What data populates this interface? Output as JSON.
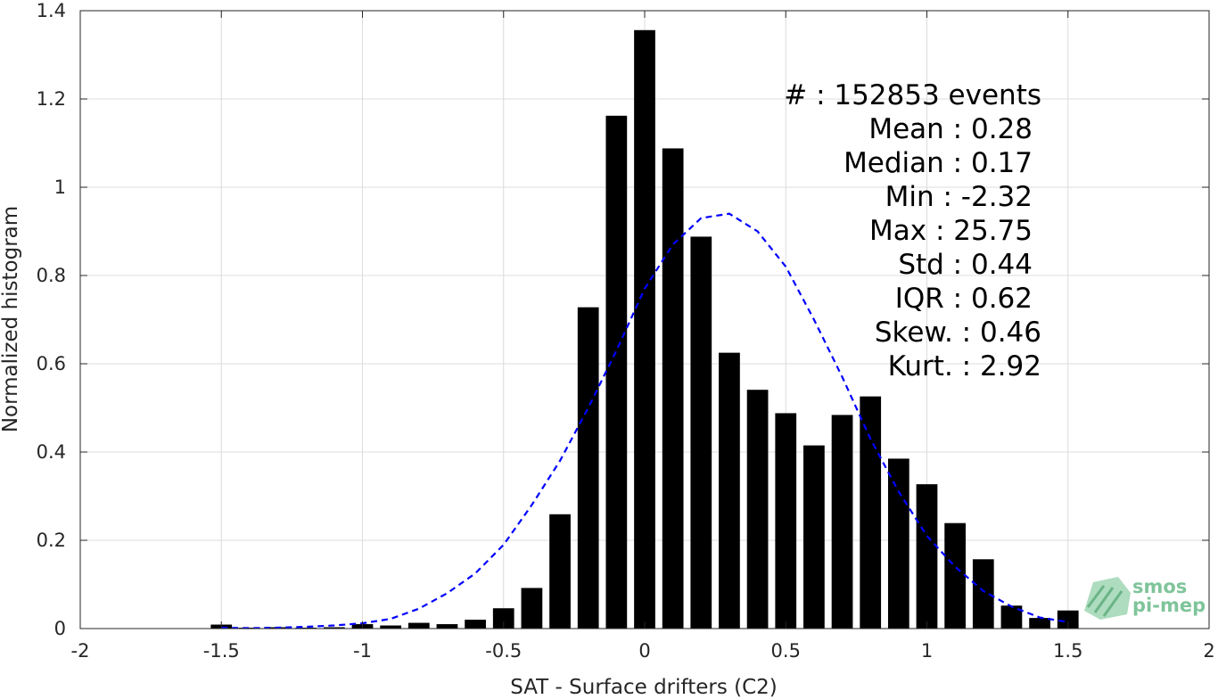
{
  "chart_data": {
    "type": "bar",
    "xlabel": "SAT - Surface drifters (C2)",
    "ylabel": "Normalized histogram",
    "xlim": [
      -2,
      2
    ],
    "ylim": [
      0,
      1.4
    ],
    "xticks": [
      "-2",
      "-1.5",
      "-1",
      "-0.5",
      "0",
      "0.5",
      "1",
      "1.5",
      "2"
    ],
    "yticks": [
      "0",
      "0.2",
      "0.4",
      "0.6",
      "0.8",
      "1",
      "1.2",
      "1.4"
    ],
    "grid": true,
    "bar_color": "#000000",
    "bars": {
      "x": [
        -1.5,
        -1.4,
        -1.3,
        -1.2,
        -1.1,
        -1.0,
        -0.9,
        -0.8,
        -0.7,
        -0.6,
        -0.5,
        -0.4,
        -0.3,
        -0.2,
        -0.1,
        0.0,
        0.1,
        0.2,
        0.3,
        0.4,
        0.5,
        0.6,
        0.7,
        0.8,
        0.9,
        1.0,
        1.1,
        1.2,
        1.3,
        1.4,
        1.5
      ],
      "values": [
        0.009,
        0.002,
        0.003,
        0.002,
        0.003,
        0.01,
        0.007,
        0.013,
        0.01,
        0.02,
        0.046,
        0.092,
        0.259,
        0.728,
        1.162,
        1.356,
        1.088,
        0.888,
        0.625,
        0.541,
        0.488,
        0.415,
        0.484,
        0.526,
        0.385,
        0.327,
        0.239,
        0.157,
        0.052,
        0.024,
        0.041
      ]
    },
    "fit_curve": {
      "style": "dashed",
      "color": "#0000ff",
      "x": [
        -1.5,
        -1.4,
        -1.3,
        -1.2,
        -1.1,
        -1.0,
        -0.9,
        -0.8,
        -0.7,
        -0.6,
        -0.5,
        -0.4,
        -0.3,
        -0.2,
        -0.1,
        0.0,
        0.1,
        0.2,
        0.3,
        0.4,
        0.5,
        0.6,
        0.7,
        0.8,
        0.9,
        1.0,
        1.1,
        1.2,
        1.3,
        1.4,
        1.5
      ],
      "y": [
        0.002,
        0.001,
        0.002,
        0.004,
        0.007,
        0.012,
        0.022,
        0.045,
        0.08,
        0.125,
        0.19,
        0.28,
        0.38,
        0.5,
        0.63,
        0.77,
        0.87,
        0.93,
        0.94,
        0.9,
        0.82,
        0.7,
        0.57,
        0.43,
        0.31,
        0.21,
        0.14,
        0.085,
        0.05,
        0.025,
        0.015
      ]
    },
    "annotations": [
      "#  : 152853 events",
      "Mean : 0.28",
      "Median : 0.17",
      "Min : -2.32",
      "Max : 25.75",
      "Std : 0.44",
      "IQR : 0.62",
      "Skew. : 0.46",
      "Kurt. : 2.92"
    ]
  },
  "logo": {
    "line1": "smos",
    "line2": "pi-mep",
    "color": "#7fc49a"
  }
}
